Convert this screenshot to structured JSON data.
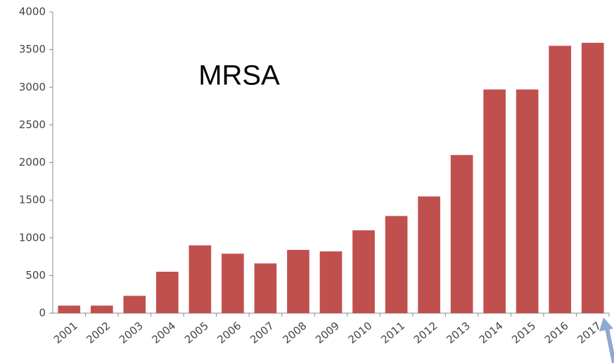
{
  "chart_data": {
    "type": "bar",
    "title": "MRSA",
    "categories": [
      "2001",
      "2002",
      "2003",
      "2004",
      "2005",
      "2006",
      "2007",
      "2008",
      "2009",
      "2010",
      "2011",
      "2012",
      "2013",
      "2014",
      "2015",
      "2016",
      "2017"
    ],
    "values": [
      100,
      100,
      230,
      550,
      900,
      790,
      660,
      840,
      820,
      1100,
      1290,
      1550,
      2100,
      2970,
      2970,
      3550,
      3590
    ],
    "color": "#c0504d",
    "ylim": [
      0,
      4000
    ],
    "yticks": [
      0,
      500,
      1000,
      1500,
      2000,
      2500,
      3000,
      3500,
      4000
    ],
    "grid": false
  }
}
